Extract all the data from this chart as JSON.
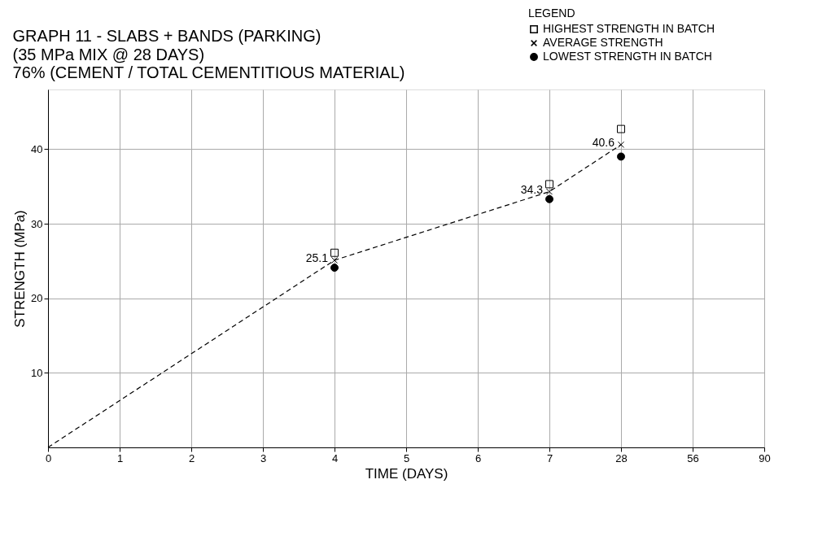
{
  "chart_data": {
    "type": "scatter",
    "title": "GRAPH 11 - SLABS + BANDS (PARKING)",
    "subtitle": "(35 MPa MIX @ 28 DAYS)\n76% (CEMENT / TOTAL CEMENTITIOUS MATERIAL)",
    "xlabel": "TIME (DAYS)",
    "ylabel": "STRENGTH (MPa)",
    "legend_title": "LEGEND",
    "categories": [
      "0",
      "1",
      "2",
      "3",
      "4",
      "5",
      "6",
      "7",
      "28",
      "56",
      "90"
    ],
    "series": [
      {
        "type": "line",
        "color": "#000000",
        "marker": "none",
        "line_style": "dashed",
        "values": [
          0,
          null,
          null,
          null,
          25.1,
          null,
          null,
          34.3,
          40.6,
          null,
          null
        ]
      },
      {
        "name": "HIGHEST STRENGTH IN BATCH",
        "color": "#000000",
        "marker": "square",
        "values": [
          null,
          null,
          null,
          null,
          26.1,
          null,
          null,
          35.3,
          42.7,
          null,
          null
        ]
      },
      {
        "name": "AVERAGE STRENGTH",
        "color": "#000000",
        "marker": "cross",
        "values": [
          null,
          null,
          null,
          null,
          25.1,
          null,
          null,
          34.3,
          40.6,
          null,
          null
        ],
        "value_labels": [
          null,
          null,
          null,
          null,
          "25.1",
          null,
          null,
          "34.3",
          "40.6",
          null,
          null
        ]
      },
      {
        "name": "LOWEST STRENGTH IN BATCH",
        "color": "#000000",
        "marker": "circle",
        "values": [
          null,
          null,
          null,
          null,
          24.1,
          null,
          null,
          33.3,
          39.0,
          null,
          null
        ]
      }
    ],
    "ylim": [
      0,
      48
    ],
    "yticks": [
      10,
      20,
      30,
      40
    ],
    "grid": true,
    "legend": "top right"
  }
}
